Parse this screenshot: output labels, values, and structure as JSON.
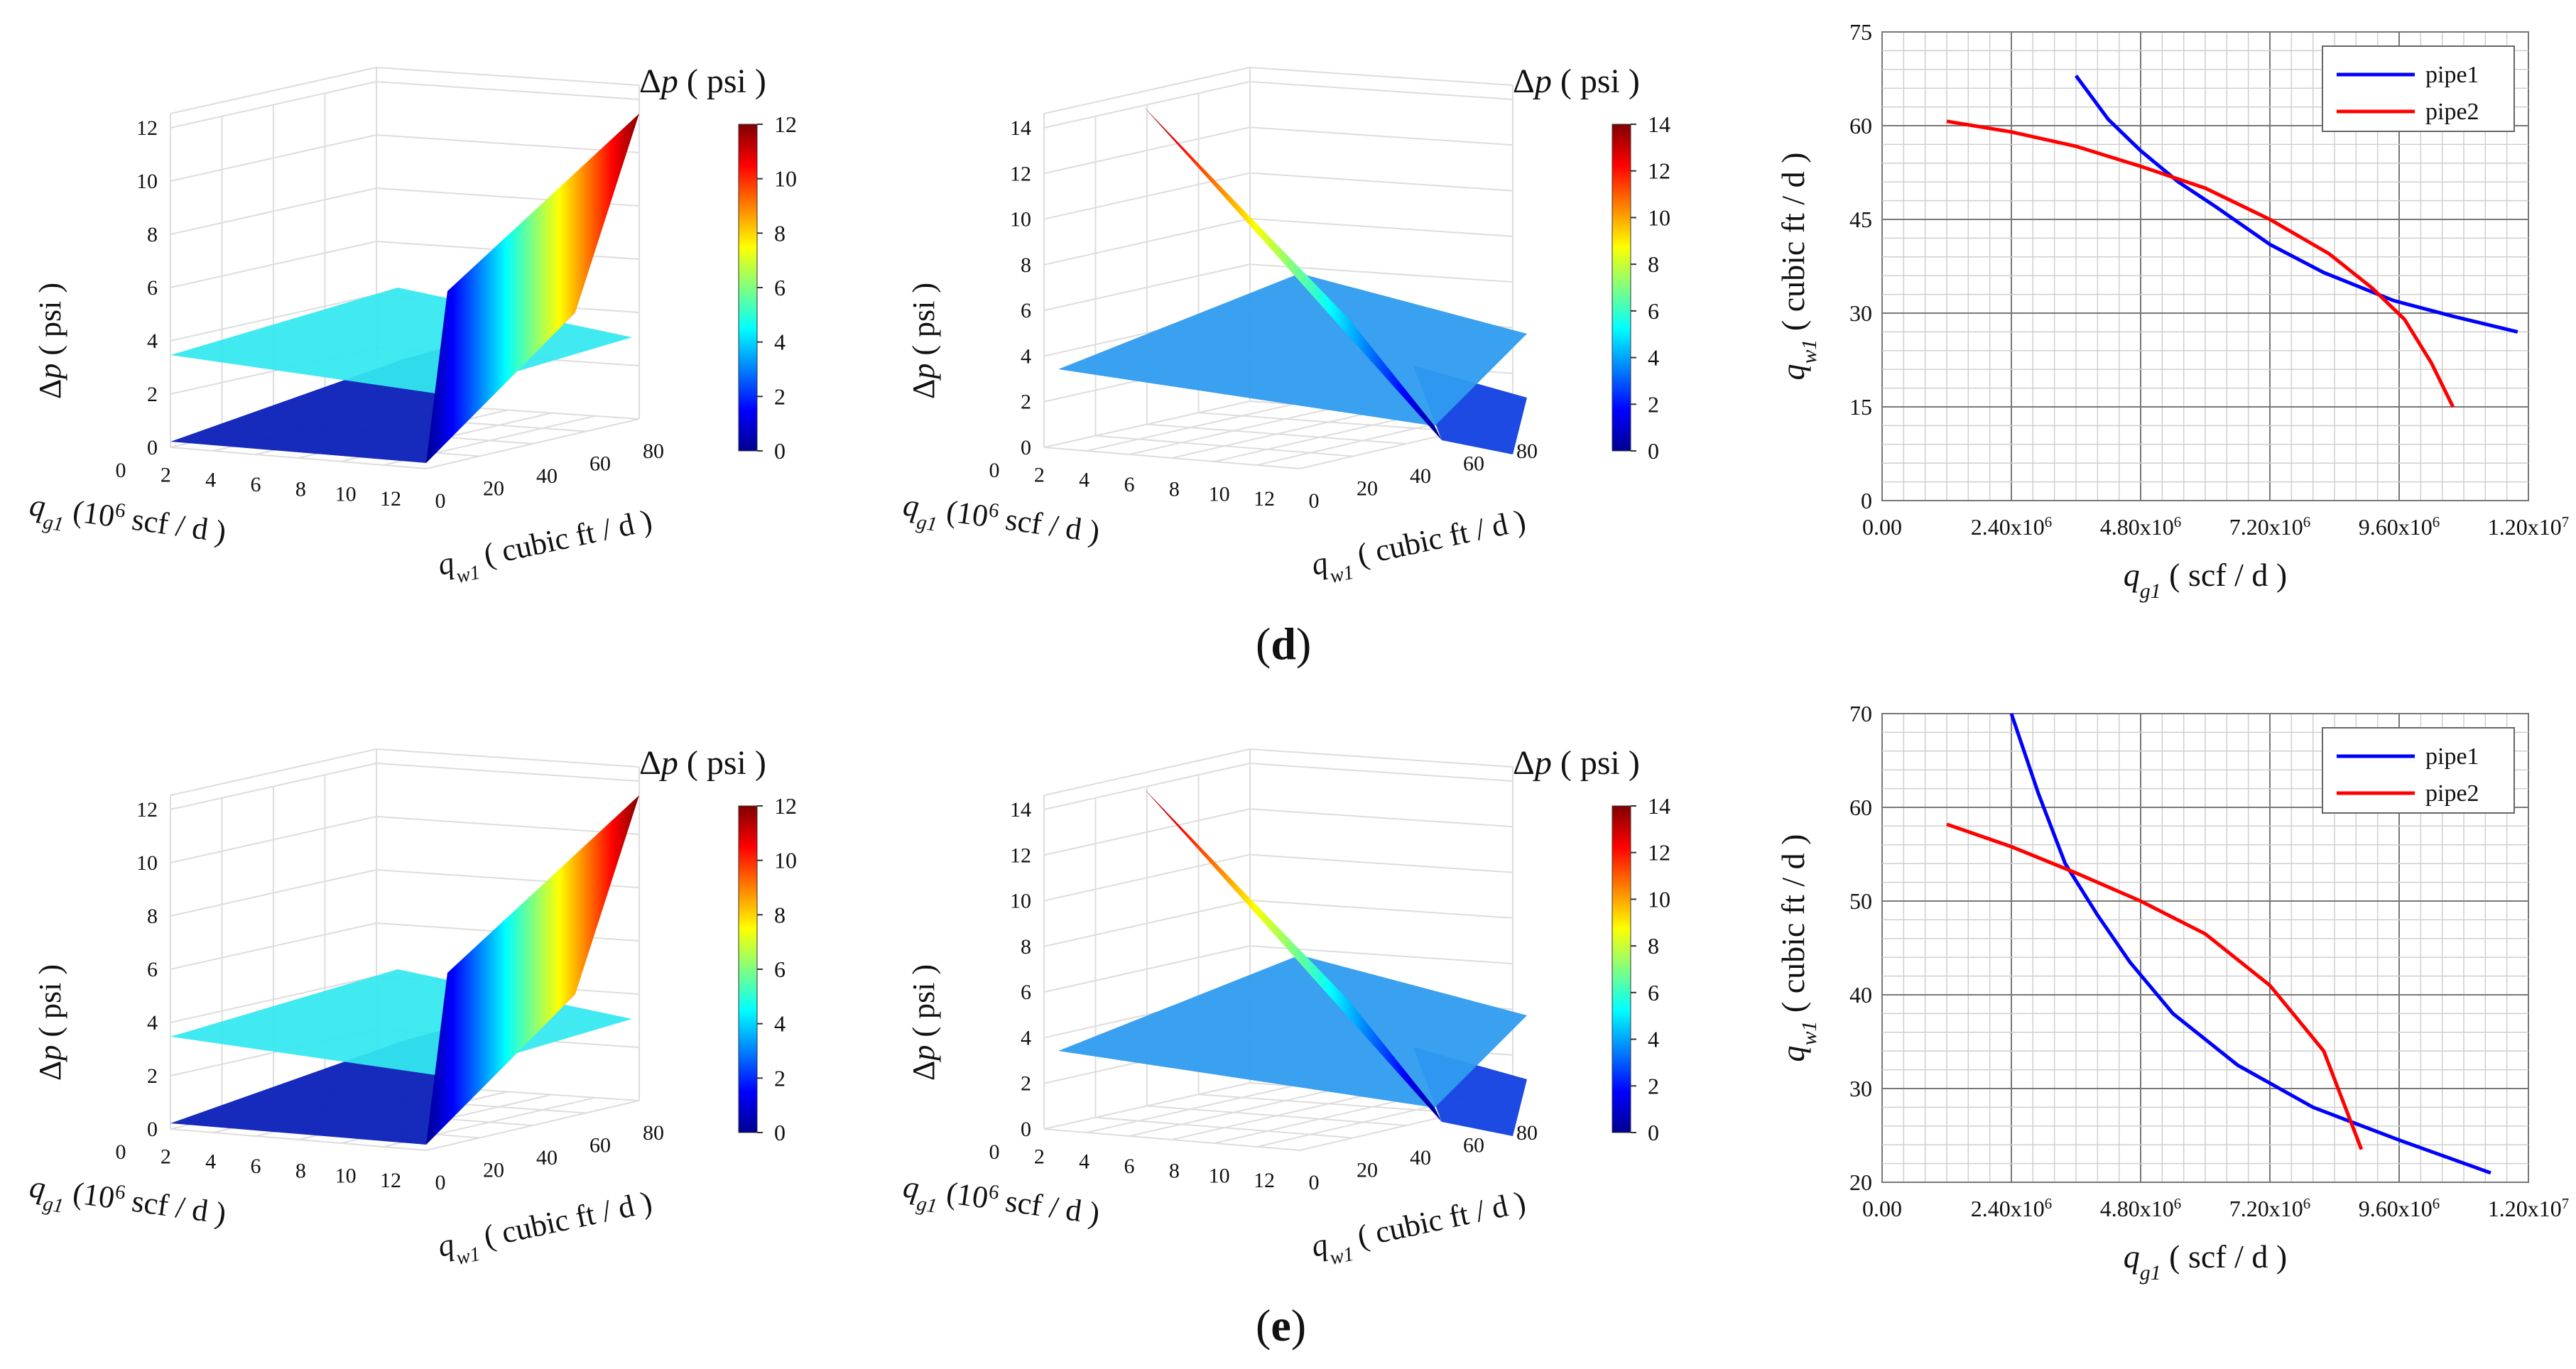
{
  "captions": {
    "row_d": "d",
    "row_e": "e"
  },
  "colorbar_colors": [
    "#00008f",
    "#0000ff",
    "#0080ff",
    "#00ffff",
    "#80ff80",
    "#ffff00",
    "#ff8000",
    "#ff0000",
    "#800000"
  ],
  "chart_data": [
    {
      "id": "d-left",
      "type": "surface3d",
      "colorbar_title": "Δp ( psi )",
      "zlabel": "Δp ( psi )",
      "xlabel": "q_g1 (10^6 scf / d )",
      "ylabel": "q_w1 ( cubic ft / d )",
      "x_ticks": [
        "0",
        "2",
        "4",
        "6",
        "8",
        "10",
        "12"
      ],
      "y_ticks": [
        "0",
        "20",
        "40",
        "60",
        "80"
      ],
      "z_ticks": [
        "0",
        "2",
        "4",
        "6",
        "8",
        "10",
        "12"
      ],
      "colorbar_ticks": [
        "0",
        "2",
        "4",
        "6",
        "8",
        "10",
        "12"
      ],
      "zlim": [
        0,
        12
      ]
    },
    {
      "id": "d-middle",
      "type": "surface3d",
      "colorbar_title": "Δp ( psi )",
      "zlabel": "Δp ( psi )",
      "xlabel": "q_g1 (10^6 scf / d )",
      "ylabel": "q_w1 ( cubic ft / d )",
      "x_ticks": [
        "0",
        "2",
        "4",
        "6",
        "8",
        "10",
        "12"
      ],
      "y_ticks": [
        "0",
        "20",
        "40",
        "60",
        "80"
      ],
      "z_ticks": [
        "0",
        "2",
        "4",
        "6",
        "8",
        "10",
        "12",
        "14"
      ],
      "colorbar_ticks": [
        "0",
        "2",
        "4",
        "6",
        "8",
        "10",
        "12",
        "14"
      ],
      "zlim": [
        0,
        14
      ]
    },
    {
      "id": "d-right",
      "type": "line",
      "xlabel": "q_g1 ( scf / d )",
      "ylabel": "q_w1 ( cubic ft / d )",
      "x_ticks": [
        "0.00",
        "2.40x10^6",
        "4.80x10^6",
        "7.20x10^6",
        "9.60x10^6",
        "1.20x10^7"
      ],
      "y_ticks": [
        "0",
        "15",
        "30",
        "45",
        "60",
        "75"
      ],
      "xlim": [
        0,
        12000000
      ],
      "ylim": [
        0,
        75
      ],
      "grid": true,
      "legend": "top-right",
      "series": [
        {
          "name": "pipe1",
          "color": "#0000ff",
          "x": [
            3600000,
            4200000,
            4800000,
            5500000,
            6200000,
            7200000,
            8200000,
            9500000,
            10600000,
            11800000
          ],
          "y": [
            68,
            61,
            56,
            51,
            47,
            41,
            36.5,
            32,
            29.5,
            27
          ]
        },
        {
          "name": "pipe2",
          "color": "#ff0000",
          "x": [
            1200000,
            2400000,
            3600000,
            4800000,
            6000000,
            7200000,
            8300000,
            9100000,
            9700000,
            10200000,
            10600000
          ],
          "y": [
            60.7,
            59,
            56.7,
            53.5,
            50,
            45,
            39.5,
            34,
            29,
            22,
            15
          ]
        }
      ]
    },
    {
      "id": "e-left",
      "type": "surface3d",
      "colorbar_title": "Δp ( psi )",
      "zlabel": "Δp ( psi )",
      "xlabel": "q_g1 (10^6 scf / d )",
      "ylabel": "q_w1 ( cubic ft / d )",
      "x_ticks": [
        "0",
        "2",
        "4",
        "6",
        "8",
        "10",
        "12"
      ],
      "y_ticks": [
        "0",
        "20",
        "40",
        "60",
        "80"
      ],
      "z_ticks": [
        "0",
        "2",
        "4",
        "6",
        "8",
        "10",
        "12"
      ],
      "colorbar_ticks": [
        "0",
        "2",
        "4",
        "6",
        "8",
        "10",
        "12"
      ],
      "zlim": [
        0,
        12
      ]
    },
    {
      "id": "e-middle",
      "type": "surface3d",
      "colorbar_title": "Δp ( psi )",
      "zlabel": "Δp ( psi )",
      "xlabel": "q_g1 (10^6 scf / d )",
      "ylabel": "q_w1 ( cubic ft / d )",
      "x_ticks": [
        "0",
        "2",
        "4",
        "6",
        "8",
        "10",
        "12"
      ],
      "y_ticks": [
        "0",
        "20",
        "40",
        "60",
        "80"
      ],
      "z_ticks": [
        "0",
        "2",
        "4",
        "6",
        "8",
        "10",
        "12",
        "14"
      ],
      "colorbar_ticks": [
        "0",
        "2",
        "4",
        "6",
        "8",
        "10",
        "12",
        "14"
      ],
      "zlim": [
        0,
        14
      ]
    },
    {
      "id": "e-right",
      "type": "line",
      "xlabel": "q_g1 ( scf / d )",
      "ylabel": "q_w1 ( cubic ft / d )",
      "x_ticks": [
        "0.00",
        "2.40x10^6",
        "4.80x10^6",
        "7.20x10^6",
        "9.60x10^6",
        "1.20x10^7"
      ],
      "y_ticks": [
        "20",
        "30",
        "40",
        "50",
        "60",
        "70"
      ],
      "xlim": [
        0,
        12000000
      ],
      "ylim": [
        20,
        70
      ],
      "grid": true,
      "legend": "top-right",
      "series": [
        {
          "name": "pipe1",
          "color": "#0000ff",
          "x": [
            2400000,
            2900000,
            3400000,
            4000000,
            4600000,
            5400000,
            6600000,
            8000000,
            9600000,
            11300000
          ],
          "y": [
            70,
            61.5,
            54,
            48.5,
            43.5,
            38,
            32.5,
            28,
            24.5,
            21
          ]
        },
        {
          "name": "pipe2",
          "color": "#ff0000",
          "x": [
            1200000,
            2400000,
            3600000,
            4800000,
            6000000,
            7200000,
            8200000,
            8900000
          ],
          "y": [
            58.2,
            55.8,
            53,
            50,
            46.5,
            41,
            34,
            23.5
          ]
        }
      ]
    }
  ]
}
